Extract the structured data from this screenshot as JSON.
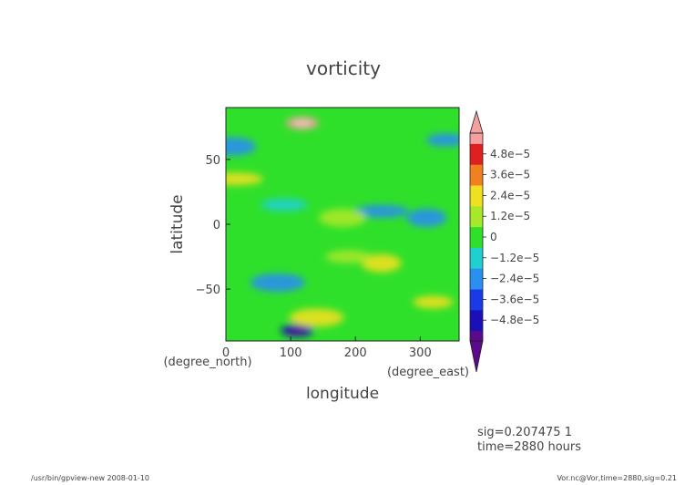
{
  "chart_data": {
    "type": "heatmap",
    "title": "vorticity",
    "xlabel": "longitude",
    "ylabel": "latitude",
    "x_unit": "(degree_east)",
    "y_unit": "(degree_north)",
    "xlim": [
      0,
      360
    ],
    "ylim": [
      -90,
      90
    ],
    "x_ticks": [
      "0",
      "100",
      "200",
      "300"
    ],
    "y_ticks": [
      "50",
      "0",
      "−50"
    ],
    "x_tick_values": [
      0,
      100,
      200,
      300
    ],
    "y_tick_values": [
      50,
      0,
      -50
    ],
    "colorbar_labels": [
      "4.8e−5",
      "3.6e−5",
      "2.4e−5",
      "1.2e−5",
      "0",
      "−1.2e−5",
      "−2.4e−5",
      "−3.6e−5",
      "−4.8e−5"
    ],
    "colorbar_values": [
      4.8e-05,
      3.6e-05,
      2.4e-05,
      1.2e-05,
      0,
      -1.2e-05,
      -2.4e-05,
      -3.6e-05,
      -4.8e-05
    ],
    "colorbar_range": [
      -6e-05,
      6e-05
    ],
    "features": [
      {
        "lon": 118,
        "lat": 78,
        "value": 5.5e-05
      },
      {
        "lon": 110,
        "lat": -82,
        "value": -5.2e-05
      },
      {
        "lon": 15,
        "lat": 35,
        "value": 2.6e-05
      },
      {
        "lon": 240,
        "lat": -30,
        "value": 3e-05
      },
      {
        "lon": 190,
        "lat": -25,
        "value": 1.8e-05
      },
      {
        "lon": 140,
        "lat": -72,
        "value": 2.6e-05
      },
      {
        "lon": 320,
        "lat": -60,
        "value": 2.4e-05
      },
      {
        "lon": 10,
        "lat": 60,
        "value": -2.6e-05
      },
      {
        "lon": 240,
        "lat": 10,
        "value": -2.4e-05
      },
      {
        "lon": 310,
        "lat": 5,
        "value": -2e-05
      },
      {
        "lon": 90,
        "lat": 15,
        "value": -1.5e-05
      },
      {
        "lon": 80,
        "lat": -45,
        "value": -1.8e-05
      },
      {
        "lon": 340,
        "lat": 65,
        "value": -2.2e-05
      },
      {
        "lon": 180,
        "lat": 5,
        "value": 1.5e-05
      }
    ]
  },
  "info": {
    "sig_line": "sig=0.207475  1",
    "time_line": "time=2880  hours"
  },
  "footer": {
    "left": "/usr/bin/gpview-new  2008-01-10",
    "right": "Vor.nc@Vor,time=2880,sig=0.21"
  },
  "colors": {
    "background": "#ffffff",
    "text": "#444444",
    "field_zero": "#2fe02a"
  }
}
